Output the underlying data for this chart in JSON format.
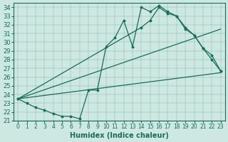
{
  "xlabel": "Humidex (Indice chaleur)",
  "bg_color": "#cce8e0",
  "line_color": "#1a6b5a",
  "ylim": [
    21,
    34.5
  ],
  "xlim": [
    -0.5,
    23.5
  ],
  "yticks": [
    21,
    22,
    23,
    24,
    25,
    26,
    27,
    28,
    29,
    30,
    31,
    32,
    33,
    34
  ],
  "xticks": [
    0,
    1,
    2,
    3,
    4,
    5,
    6,
    7,
    8,
    9,
    10,
    11,
    12,
    13,
    14,
    15,
    16,
    17,
    18,
    19,
    20,
    21,
    22,
    23
  ],
  "curve1_x": [
    0,
    1,
    2,
    3,
    4,
    5,
    6,
    7,
    8,
    9,
    10,
    11,
    12,
    13,
    14,
    15,
    16,
    17,
    18,
    19,
    20,
    21,
    22,
    23
  ],
  "curve1_y": [
    23.5,
    23.0,
    22.5,
    22.2,
    21.8,
    21.5,
    21.5,
    21.2,
    24.5,
    24.5,
    29.5,
    30.5,
    32.5,
    29.5,
    34.0,
    33.5,
    34.2,
    33.5,
    33.0,
    31.7,
    30.8,
    29.3,
    28.5,
    26.7
  ],
  "curve2_x": [
    0,
    14,
    15,
    16,
    17,
    18,
    19,
    20,
    21,
    22,
    23
  ],
  "curve2_y": [
    23.5,
    31.7,
    32.5,
    34.0,
    33.3,
    33.0,
    31.5,
    30.8,
    29.3,
    28.0,
    26.7
  ],
  "curve3_x": [
    0,
    23
  ],
  "curve3_y": [
    23.5,
    31.5
  ],
  "curve4_x": [
    0,
    23
  ],
  "curve4_y": [
    23.5,
    26.5
  ]
}
